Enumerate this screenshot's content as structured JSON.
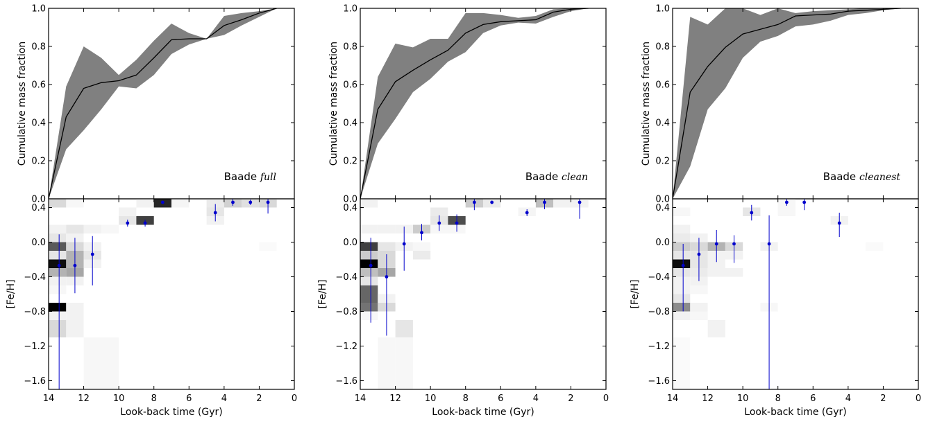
{
  "figure": {
    "panels": [
      {
        "label_prefix": "Baade",
        "label_suffix": "full"
      },
      {
        "label_prefix": "Baade",
        "label_suffix": "clean"
      },
      {
        "label_prefix": "Baade",
        "label_suffix": "cleanest"
      }
    ]
  },
  "colors": {
    "band_fill": "#808080",
    "median_line": "#000000",
    "points": "#0000cc",
    "frame": "#000000"
  },
  "chart_data": [
    {
      "type": "area",
      "title": "",
      "xlabel": "",
      "ylabel": "Cumulative mass fraction",
      "xlim": [
        14,
        0
      ],
      "ylim": [
        0.0,
        1.0
      ],
      "yticks": [
        "0.0",
        "0.2",
        "0.4",
        "0.6",
        "0.8",
        "1.0"
      ],
      "x": [
        14,
        13,
        12,
        11,
        10,
        9,
        8,
        7,
        6,
        5,
        4,
        3,
        2,
        1
      ],
      "series": [
        {
          "values": [
            0.0,
            0.43,
            0.58,
            0.61,
            0.62,
            0.65,
            0.74,
            0.835,
            0.84,
            0.84,
            0.91,
            0.94,
            0.975,
            1.0
          ]
        },
        {
          "values": [
            0.0,
            0.26,
            0.36,
            0.47,
            0.59,
            0.58,
            0.65,
            0.76,
            0.81,
            0.84,
            0.86,
            0.91,
            0.955,
            1.0
          ]
        },
        {
          "values": [
            0.0,
            0.59,
            0.8,
            0.74,
            0.65,
            0.73,
            0.83,
            0.92,
            0.87,
            0.84,
            0.96,
            0.975,
            0.985,
            1.0
          ]
        }
      ]
    },
    {
      "type": "heatmap",
      "xlabel": "Look-back time (Gyr)",
      "ylabel": "[Fe/H]",
      "xlim": [
        14,
        0
      ],
      "ylim": [
        -1.7,
        0.5
      ],
      "xticks": [
        "14",
        "12",
        "10",
        "8",
        "6",
        "4",
        "2",
        "0"
      ],
      "yticks": [
        "-1.6",
        "-1.2",
        "-0.8",
        "-0.4",
        "0.0",
        "0.4"
      ],
      "cells": [
        [
          13.5,
          0.45,
          0.15
        ],
        [
          12.5,
          0.45,
          0.03
        ],
        [
          8.5,
          0.45,
          0.05
        ],
        [
          7.5,
          0.45,
          0.85
        ],
        [
          6.5,
          0.45,
          0.04
        ],
        [
          4.5,
          0.45,
          0.08
        ],
        [
          3.5,
          0.45,
          0.18
        ],
        [
          2.5,
          0.45,
          0.12
        ],
        [
          1.5,
          0.45,
          0.15
        ],
        [
          9.5,
          0.35,
          0.05
        ],
        [
          4.5,
          0.35,
          0.1
        ],
        [
          9.5,
          0.25,
          0.1
        ],
        [
          8.5,
          0.25,
          0.75
        ],
        [
          4.5,
          0.25,
          0.05
        ],
        [
          13.5,
          0.15,
          0.05
        ],
        [
          12.5,
          0.15,
          0.1
        ],
        [
          11.5,
          0.15,
          0.05
        ],
        [
          10.5,
          0.15,
          0.03
        ],
        [
          13.5,
          0.05,
          0.1
        ],
        [
          12.5,
          0.05,
          0.05
        ],
        [
          13.5,
          -0.05,
          0.65
        ],
        [
          12.5,
          -0.05,
          0.15
        ],
        [
          11.5,
          -0.05,
          0.05
        ],
        [
          1.5,
          -0.05,
          0.02
        ],
        [
          13.5,
          -0.15,
          0.1
        ],
        [
          12.5,
          -0.15,
          0.3
        ],
        [
          11.5,
          -0.15,
          0.1
        ],
        [
          13.5,
          -0.25,
          0.95
        ],
        [
          12.5,
          -0.25,
          0.3
        ],
        [
          11.5,
          -0.25,
          0.05
        ],
        [
          13.5,
          -0.35,
          0.3
        ],
        [
          12.5,
          -0.35,
          0.35
        ],
        [
          13.5,
          -0.45,
          0.05
        ],
        [
          12.5,
          -0.45,
          0.05
        ],
        [
          13.5,
          -0.55,
          0.03
        ],
        [
          13.5,
          -0.75,
          1.0
        ],
        [
          12.5,
          -0.75,
          0.05
        ],
        [
          13.5,
          -0.85,
          0.05
        ],
        [
          12.5,
          -0.85,
          0.05
        ],
        [
          13.5,
          -0.95,
          0.15
        ],
        [
          12.5,
          -0.95,
          0.05
        ],
        [
          13.5,
          -1.05,
          0.15
        ],
        [
          12.5,
          -1.05,
          0.05
        ],
        [
          11.5,
          -1.15,
          0.03
        ],
        [
          10.5,
          -1.15,
          0.03
        ],
        [
          11.5,
          -1.25,
          0.03
        ],
        [
          10.5,
          -1.25,
          0.03
        ],
        [
          11.5,
          -1.35,
          0.03
        ],
        [
          10.5,
          -1.35,
          0.03
        ],
        [
          11.5,
          -1.45,
          0.03
        ],
        [
          10.5,
          -1.45,
          0.03
        ],
        [
          11.5,
          -1.55,
          0.03
        ],
        [
          10.5,
          -1.55,
          0.03
        ],
        [
          11.5,
          -1.65,
          0.03
        ],
        [
          10.5,
          -1.65,
          0.03
        ]
      ],
      "points": [
        {
          "x": 13.4,
          "y": -0.27,
          "err_lo": -1.7,
          "err_hi": 0.09
        },
        {
          "x": 12.5,
          "y": -0.27,
          "err_lo": -0.59,
          "err_hi": 0.05
        },
        {
          "x": 11.5,
          "y": -0.14,
          "err_lo": -0.5,
          "err_hi": 0.07
        },
        {
          "x": 9.5,
          "y": 0.22,
          "err_lo": 0.18,
          "err_hi": 0.26
        },
        {
          "x": 8.5,
          "y": 0.22,
          "err_lo": 0.18,
          "err_hi": 0.26
        },
        {
          "x": 7.5,
          "y": 0.46,
          "err_lo": 0.44,
          "err_hi": 0.48
        },
        {
          "x": 4.5,
          "y": 0.34,
          "err_lo": 0.24,
          "err_hi": 0.44
        },
        {
          "x": 3.5,
          "y": 0.46,
          "err_lo": 0.42,
          "err_hi": 0.5
        },
        {
          "x": 2.5,
          "y": 0.46,
          "err_lo": 0.43,
          "err_hi": 0.49
        },
        {
          "x": 1.5,
          "y": 0.46,
          "err_lo": 0.33,
          "err_hi": 0.5
        }
      ]
    },
    {
      "type": "area",
      "title": "",
      "xlabel": "",
      "ylabel": "Cumulative mass fraction",
      "xlim": [
        14,
        0
      ],
      "ylim": [
        0.0,
        1.0
      ],
      "yticks": [
        "0.0",
        "0.2",
        "0.4",
        "0.6",
        "0.8",
        "1.0"
      ],
      "x": [
        14,
        13,
        12,
        11,
        10,
        9,
        8,
        7,
        6,
        5,
        4,
        3,
        2,
        1
      ],
      "series": [
        {
          "values": [
            0.0,
            0.47,
            0.615,
            0.675,
            0.73,
            0.78,
            0.87,
            0.915,
            0.93,
            0.935,
            0.94,
            0.98,
            0.995,
            1.0
          ]
        },
        {
          "values": [
            0.0,
            0.29,
            0.42,
            0.56,
            0.63,
            0.72,
            0.77,
            0.87,
            0.91,
            0.925,
            0.92,
            0.955,
            0.985,
            1.0
          ]
        },
        {
          "values": [
            0.0,
            0.64,
            0.815,
            0.795,
            0.84,
            0.84,
            0.975,
            0.975,
            0.965,
            0.95,
            0.96,
            0.995,
            1.0,
            1.0
          ]
        }
      ]
    },
    {
      "type": "heatmap",
      "xlabel": "Look-back time (Gyr)",
      "ylabel": "[Fe/H]",
      "xlim": [
        14,
        0
      ],
      "ylim": [
        -1.7,
        0.5
      ],
      "xticks": [
        "14",
        "12",
        "10",
        "8",
        "6",
        "4",
        "2",
        "0"
      ],
      "yticks": [
        "-1.6",
        "-1.2",
        "-0.8",
        "-0.4",
        "0.0",
        "0.4"
      ],
      "cells": [
        [
          13.5,
          0.45,
          0.05
        ],
        [
          7.5,
          0.45,
          0.2
        ],
        [
          6.5,
          0.45,
          0.08
        ],
        [
          3.5,
          0.45,
          0.25
        ],
        [
          2.5,
          0.45,
          0.05
        ],
        [
          1.5,
          0.45,
          0.05
        ],
        [
          9.5,
          0.35,
          0.08
        ],
        [
          4.5,
          0.35,
          0.04
        ],
        [
          9.5,
          0.25,
          0.1
        ],
        [
          8.5,
          0.25,
          0.7
        ],
        [
          10.5,
          0.15,
          0.2
        ],
        [
          11.5,
          0.15,
          0.05
        ],
        [
          12.5,
          0.15,
          0.05
        ],
        [
          13.5,
          0.15,
          0.05
        ],
        [
          9.5,
          0.15,
          0.03
        ],
        [
          8.5,
          0.15,
          0.03
        ],
        [
          13.5,
          -0.05,
          0.75
        ],
        [
          12.5,
          -0.05,
          0.1
        ],
        [
          11.5,
          -0.05,
          0.05
        ],
        [
          10.5,
          -0.05,
          0.03
        ],
        [
          13.5,
          -0.15,
          0.2
        ],
        [
          12.5,
          -0.15,
          0.15
        ],
        [
          10.5,
          -0.15,
          0.08
        ],
        [
          13.5,
          -0.25,
          1.0
        ],
        [
          12.5,
          -0.25,
          0.15
        ],
        [
          13.5,
          -0.35,
          0.25
        ],
        [
          12.5,
          -0.35,
          0.35
        ],
        [
          13.5,
          -0.45,
          0.1
        ],
        [
          13.5,
          -0.55,
          0.6
        ],
        [
          13.5,
          -0.65,
          0.6
        ],
        [
          12.5,
          -0.65,
          0.05
        ],
        [
          13.5,
          -0.75,
          0.55
        ],
        [
          12.5,
          -0.75,
          0.15
        ],
        [
          13.5,
          -0.85,
          0.03
        ],
        [
          11.5,
          -0.95,
          0.1
        ],
        [
          11.5,
          -1.05,
          0.1
        ],
        [
          12.5,
          -1.15,
          0.03
        ],
        [
          11.5,
          -1.15,
          0.03
        ],
        [
          12.5,
          -1.25,
          0.03
        ],
        [
          11.5,
          -1.25,
          0.03
        ],
        [
          12.5,
          -1.35,
          0.03
        ],
        [
          11.5,
          -1.35,
          0.03
        ],
        [
          12.5,
          -1.45,
          0.03
        ],
        [
          11.5,
          -1.45,
          0.03
        ],
        [
          12.5,
          -1.55,
          0.03
        ],
        [
          11.5,
          -1.55,
          0.03
        ],
        [
          12.5,
          -1.65,
          0.03
        ],
        [
          11.5,
          -1.65,
          0.03
        ]
      ],
      "points": [
        {
          "x": 13.4,
          "y": -0.27,
          "err_lo": -0.93,
          "err_hi": 0.05
        },
        {
          "x": 12.5,
          "y": -0.4,
          "err_lo": -1.08,
          "err_hi": -0.14
        },
        {
          "x": 11.5,
          "y": -0.02,
          "err_lo": -0.33,
          "err_hi": 0.18
        },
        {
          "x": 10.5,
          "y": 0.11,
          "err_lo": 0.02,
          "err_hi": 0.21
        },
        {
          "x": 9.5,
          "y": 0.22,
          "err_lo": 0.13,
          "err_hi": 0.31
        },
        {
          "x": 8.5,
          "y": 0.22,
          "err_lo": 0.12,
          "err_hi": 0.32
        },
        {
          "x": 7.5,
          "y": 0.46,
          "err_lo": 0.37,
          "err_hi": 0.5
        },
        {
          "x": 6.5,
          "y": 0.46,
          "err_lo": 0.44,
          "err_hi": 0.48
        },
        {
          "x": 4.5,
          "y": 0.34,
          "err_lo": 0.3,
          "err_hi": 0.38
        },
        {
          "x": 3.5,
          "y": 0.46,
          "err_lo": 0.38,
          "err_hi": 0.5
        },
        {
          "x": 1.5,
          "y": 0.46,
          "err_lo": 0.27,
          "err_hi": 0.5
        }
      ]
    },
    {
      "type": "area",
      "title": "",
      "xlabel": "",
      "ylabel": "Cumulative mass fraction",
      "xlim": [
        14,
        0
      ],
      "ylim": [
        0.0,
        1.0
      ],
      "yticks": [
        "0.0",
        "0.2",
        "0.4",
        "0.6",
        "0.8",
        "1.0"
      ],
      "x": [
        14,
        13,
        12,
        11,
        10,
        9,
        8,
        7,
        6,
        5,
        4,
        3,
        2,
        1
      ],
      "series": [
        {
          "values": [
            0.0,
            0.56,
            0.695,
            0.795,
            0.865,
            0.89,
            0.915,
            0.96,
            0.965,
            0.97,
            0.985,
            0.99,
            0.995,
            1.0
          ]
        },
        {
          "values": [
            0.0,
            0.17,
            0.47,
            0.58,
            0.74,
            0.825,
            0.855,
            0.905,
            0.915,
            0.935,
            0.965,
            0.975,
            0.99,
            1.0
          ]
        },
        {
          "values": [
            0.0,
            0.955,
            0.915,
            1.0,
            1.0,
            0.965,
            1.0,
            0.975,
            0.985,
            0.99,
            0.995,
            1.0,
            1.0,
            1.0
          ]
        }
      ]
    },
    {
      "type": "heatmap",
      "xlabel": "Look-back time (Gyr)",
      "ylabel": "[Fe/H]",
      "xlim": [
        14,
        0
      ],
      "ylim": [
        -1.7,
        0.5
      ],
      "xticks": [
        "14",
        "12",
        "10",
        "8",
        "6",
        "4",
        "2",
        "0"
      ],
      "yticks": [
        "-1.6",
        "-1.2",
        "-0.8",
        "-0.4",
        "0.0",
        "0.4"
      ],
      "cells": [
        [
          13.5,
          0.35,
          0.03
        ],
        [
          9.5,
          0.35,
          0.1
        ],
        [
          7.5,
          0.45,
          0.03
        ],
        [
          7.5,
          0.35,
          0.03
        ],
        [
          4.5,
          0.25,
          0.05
        ],
        [
          13.5,
          0.15,
          0.05
        ],
        [
          13.5,
          0.05,
          0.08
        ],
        [
          12.5,
          0.05,
          0.05
        ],
        [
          13.5,
          -0.05,
          0.2
        ],
        [
          12.5,
          -0.05,
          0.15
        ],
        [
          11.5,
          -0.05,
          0.3
        ],
        [
          10.5,
          -0.05,
          0.15
        ],
        [
          8.5,
          -0.05,
          0.05
        ],
        [
          2.5,
          -0.05,
          0.02
        ],
        [
          13.5,
          -0.15,
          0.1
        ],
        [
          12.5,
          -0.15,
          0.1
        ],
        [
          11.5,
          -0.15,
          0.05
        ],
        [
          10.5,
          -0.15,
          0.05
        ],
        [
          13.5,
          -0.25,
          0.95
        ],
        [
          12.5,
          -0.25,
          0.1
        ],
        [
          11.5,
          -0.25,
          0.05
        ],
        [
          13.5,
          -0.35,
          0.1
        ],
        [
          12.5,
          -0.35,
          0.08
        ],
        [
          11.5,
          -0.35,
          0.05
        ],
        [
          10.5,
          -0.35,
          0.05
        ],
        [
          13.5,
          -0.45,
          0.05
        ],
        [
          12.5,
          -0.45,
          0.05
        ],
        [
          13.5,
          -0.55,
          0.05
        ],
        [
          12.5,
          -0.55,
          0.03
        ],
        [
          13.5,
          -0.65,
          0.1
        ],
        [
          13.5,
          -0.75,
          0.45
        ],
        [
          12.5,
          -0.75,
          0.05
        ],
        [
          8.5,
          -0.75,
          0.03
        ],
        [
          13.5,
          -0.85,
          0.05
        ],
        [
          12.5,
          -0.85,
          0.03
        ],
        [
          11.5,
          -0.95,
          0.05
        ],
        [
          11.5,
          -1.05,
          0.05
        ],
        [
          13.5,
          -1.15,
          0.02
        ],
        [
          13.5,
          -1.25,
          0.02
        ],
        [
          13.5,
          -1.35,
          0.02
        ],
        [
          13.5,
          -1.45,
          0.02
        ],
        [
          13.5,
          -1.55,
          0.02
        ],
        [
          13.5,
          -1.65,
          0.02
        ]
      ],
      "points": [
        {
          "x": 13.4,
          "y": -0.27,
          "err_lo": -0.8,
          "err_hi": -0.02
        },
        {
          "x": 12.5,
          "y": -0.14,
          "err_lo": -0.45,
          "err_hi": 0.05
        },
        {
          "x": 11.5,
          "y": -0.02,
          "err_lo": -0.23,
          "err_hi": 0.14
        },
        {
          "x": 10.5,
          "y": -0.02,
          "err_lo": -0.24,
          "err_hi": 0.08
        },
        {
          "x": 9.5,
          "y": 0.34,
          "err_lo": 0.25,
          "err_hi": 0.43
        },
        {
          "x": 8.5,
          "y": -0.02,
          "err_lo": -1.7,
          "err_hi": 0.31
        },
        {
          "x": 7.5,
          "y": 0.46,
          "err_lo": 0.42,
          "err_hi": 0.5
        },
        {
          "x": 6.5,
          "y": 0.46,
          "err_lo": 0.37,
          "err_hi": 0.5
        },
        {
          "x": 4.5,
          "y": 0.22,
          "err_lo": 0.06,
          "err_hi": 0.34
        }
      ]
    }
  ]
}
